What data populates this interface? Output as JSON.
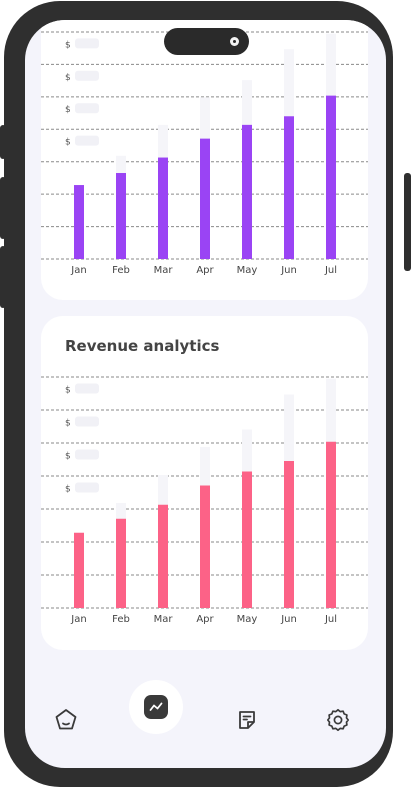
{
  "screen": {
    "charts": [
      {
        "id": "top",
        "title": "",
        "bar_color": "#9a44f4",
        "ghost_color": "#f5f5f9",
        "y_tick_labels": [
          "$",
          "$",
          "$",
          "$"
        ]
      },
      {
        "id": "revenue",
        "title": "Revenue analytics",
        "bar_color": "#fc6287",
        "ghost_color": "#f5f5f9",
        "y_tick_labels": [
          "$",
          "$",
          "$",
          "$"
        ]
      }
    ],
    "nav": {
      "items": [
        {
          "name": "home",
          "icon": "pentagon-icon"
        },
        {
          "name": "analytics",
          "icon": "chart-line-icon",
          "active": true
        },
        {
          "name": "notes",
          "icon": "note-icon"
        },
        {
          "name": "settings",
          "icon": "gear-icon"
        }
      ]
    }
  },
  "chart_data": [
    {
      "type": "bar",
      "title": "",
      "categories": [
        "Jan",
        "Feb",
        "Mar",
        "Apr",
        "May",
        "Jun",
        "Jul"
      ],
      "series": [
        {
          "values": [
            2.15,
            2.5,
            2.95,
            3.5,
            3.9,
            4.15,
            4.75
          ]
        },
        {
          "values": [
            2.15,
            3.0,
            3.9,
            4.7,
            5.2,
            6.1,
            6.55
          ]
        }
      ],
      "ylim": [
        0,
        6.6
      ],
      "grid": true,
      "legend": "none"
    },
    {
      "type": "bar",
      "title": "Revenue analytics",
      "categories": [
        "Jan",
        "Feb",
        "Mar",
        "Apr",
        "May",
        "Jun",
        "Jul"
      ],
      "series": [
        {
          "values": [
            2.15,
            2.55,
            2.95,
            3.5,
            3.9,
            4.2,
            4.75
          ]
        },
        {
          "values": [
            2.15,
            3.0,
            3.8,
            4.6,
            5.1,
            6.1,
            6.55
          ]
        }
      ],
      "ylim": [
        0,
        6.6
      ],
      "grid": true,
      "legend": "none"
    }
  ]
}
